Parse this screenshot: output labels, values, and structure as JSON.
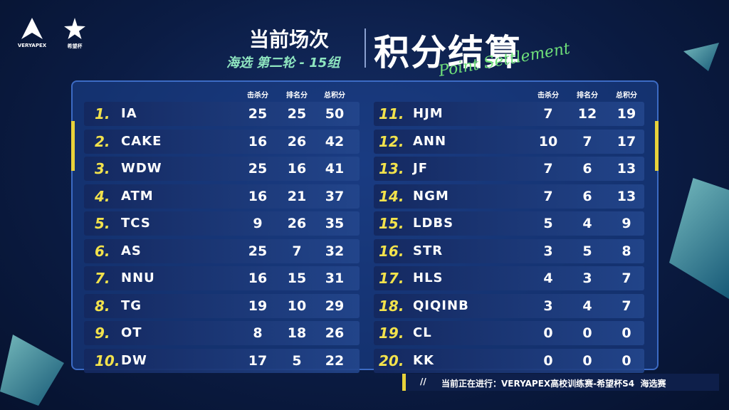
{
  "header": {
    "logo_left": "VERYAPEX",
    "logo_right": "希望杯",
    "title": "当前场次",
    "subtitle": "海选 第二轮 - 15组",
    "main_title": "积分结算",
    "script_title": "Point Settlement"
  },
  "standings": {
    "columns": [
      "击杀分",
      "排名分",
      "总积分"
    ],
    "rows": [
      {
        "rank": "1.",
        "team": "IA",
        "kills": 25,
        "placement": 25,
        "total": 50
      },
      {
        "rank": "2.",
        "team": "CAKE",
        "kills": 16,
        "placement": 26,
        "total": 42
      },
      {
        "rank": "3.",
        "team": "WDW",
        "kills": 25,
        "placement": 16,
        "total": 41
      },
      {
        "rank": "4.",
        "team": "ATM",
        "kills": 16,
        "placement": 21,
        "total": 37
      },
      {
        "rank": "5.",
        "team": "TCS",
        "kills": 9,
        "placement": 26,
        "total": 35
      },
      {
        "rank": "6.",
        "team": "AS",
        "kills": 25,
        "placement": 7,
        "total": 32
      },
      {
        "rank": "7.",
        "team": "NNU",
        "kills": 16,
        "placement": 15,
        "total": 31
      },
      {
        "rank": "8.",
        "team": "TG",
        "kills": 19,
        "placement": 10,
        "total": 29
      },
      {
        "rank": "9.",
        "team": "OT",
        "kills": 8,
        "placement": 18,
        "total": 26
      },
      {
        "rank": "10.",
        "team": "DW",
        "kills": 17,
        "placement": 5,
        "total": 22
      },
      {
        "rank": "11.",
        "team": "HJM",
        "kills": 7,
        "placement": 12,
        "total": 19
      },
      {
        "rank": "12.",
        "team": "ANN",
        "kills": 10,
        "placement": 7,
        "total": 17
      },
      {
        "rank": "13.",
        "team": "JF",
        "kills": 7,
        "placement": 6,
        "total": 13
      },
      {
        "rank": "14.",
        "team": "NGM",
        "kills": 7,
        "placement": 6,
        "total": 13
      },
      {
        "rank": "15.",
        "team": "LDBS",
        "kills": 5,
        "placement": 4,
        "total": 9
      },
      {
        "rank": "16.",
        "team": "STR",
        "kills": 3,
        "placement": 5,
        "total": 8
      },
      {
        "rank": "17.",
        "team": "HLS",
        "kills": 4,
        "placement": 3,
        "total": 7
      },
      {
        "rank": "18.",
        "team": "QIQINB",
        "kills": 3,
        "placement": 4,
        "total": 7
      },
      {
        "rank": "19.",
        "team": "CL",
        "kills": 0,
        "placement": 0,
        "total": 0
      },
      {
        "rank": "20.",
        "team": "KK",
        "kills": 0,
        "placement": 0,
        "total": 0
      }
    ]
  },
  "footer": {
    "marker": "//",
    "text": "当前正在进行：VERYAPEX高校训练赛-希望杯S4  海选赛"
  }
}
